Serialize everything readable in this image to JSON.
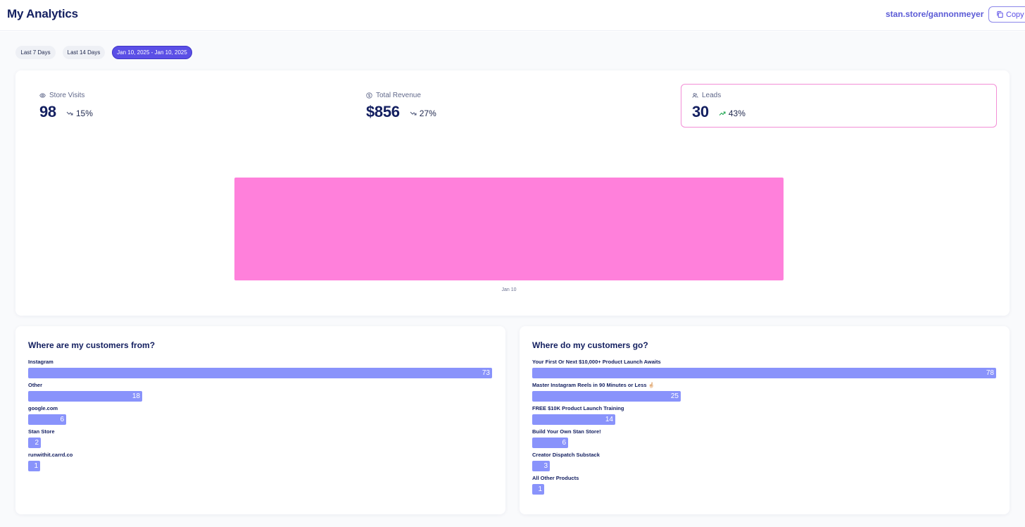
{
  "header": {
    "title": "My Analytics",
    "store_link": "stan.store/gannonmeyer",
    "copy_label": "Copy"
  },
  "date_range": {
    "options": [
      {
        "label": "Last 7 Days",
        "active": false
      },
      {
        "label": "Last 14 Days",
        "active": false
      },
      {
        "label": "Jan 10, 2025 - Jan 10, 2025",
        "active": true
      }
    ]
  },
  "stats": [
    {
      "label": "Store Visits",
      "icon": "eye-icon",
      "value": "98",
      "trend_icon": "trend-down-icon",
      "change": "15%",
      "selected": false
    },
    {
      "label": "Total Revenue",
      "icon": "dollar-circle-icon",
      "value": "$856",
      "trend_icon": "trend-down-icon",
      "change": "27%",
      "selected": false
    },
    {
      "label": "Leads",
      "icon": "users-icon",
      "value": "30",
      "trend_icon": "trend-up-icon",
      "change": "43%",
      "selected": true
    }
  ],
  "chart_data": {
    "type": "bar",
    "categories": [
      "Jan 10"
    ],
    "values": [
      30
    ],
    "title": "",
    "xlabel": "",
    "ylabel": "",
    "color": "#ff80db"
  },
  "customers_from": {
    "title": "Where are my customers from?",
    "max": 73,
    "items": [
      {
        "label": "Instagram",
        "value": 73
      },
      {
        "label": "Other",
        "value": 18
      },
      {
        "label": "google.com",
        "value": 6
      },
      {
        "label": "Stan Store",
        "value": 2
      },
      {
        "label": "runwithit.carrd.co",
        "value": 1
      }
    ]
  },
  "customers_go": {
    "title": "Where do my customers go?",
    "max": 78,
    "items": [
      {
        "label": "Your First Or Next $10,000+ Product Launch Awaits",
        "value": 78
      },
      {
        "label": "Master Instagram Reels in 90 Minutes or Less 🤞🏻",
        "value": 25
      },
      {
        "label": "FREE $10K Product Launch Training",
        "value": 14
      },
      {
        "label": "Build Your Own Stan Store!",
        "value": 6
      },
      {
        "label": "Creator Dispatch Substack",
        "value": 3
      },
      {
        "label": "All Other Products",
        "value": 1
      }
    ]
  },
  "colors": {
    "accent": "#5b4fe6",
    "bar_list": "#8993fb",
    "chart_bar": "#ff80db",
    "selected_border": "#f38ed6",
    "navy_text": "#131f60"
  }
}
